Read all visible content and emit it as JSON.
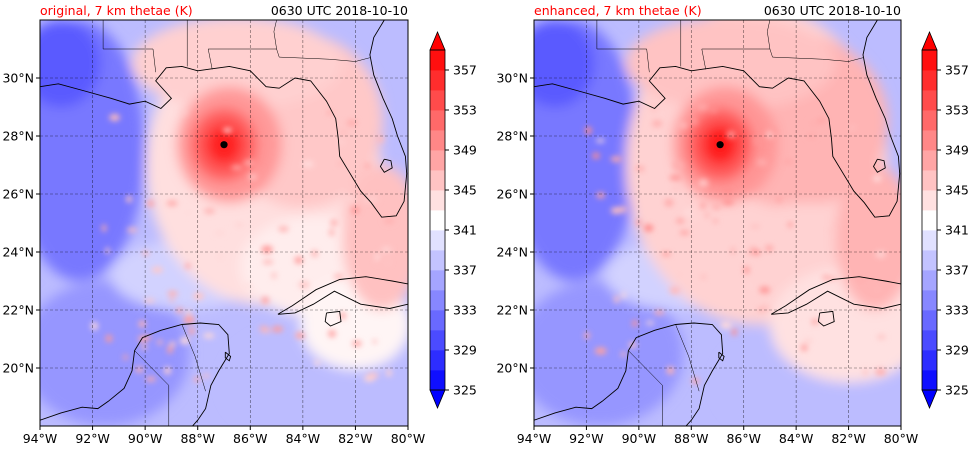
{
  "panels": [
    {
      "title": "original, 7 km thetae (K)",
      "time": "0630 UTC 2018-10-10",
      "storm_center": {
        "lon": -87.0,
        "lat": 27.7
      },
      "core_intensity": 0.95,
      "warm_spread": 0.55
    },
    {
      "title": "enhanced, 7 km thetae (K)",
      "time": "0630 UTC 2018-10-10",
      "storm_center": {
        "lon": -86.9,
        "lat": 27.7
      },
      "core_intensity": 1.0,
      "warm_spread": 1.0
    }
  ],
  "map": {
    "lon_range": [
      -94,
      -80
    ],
    "lat_range": [
      18,
      32
    ],
    "lon_ticks": [
      {
        "value": -94,
        "label": "94°W"
      },
      {
        "value": -92,
        "label": "92°W"
      },
      {
        "value": -90,
        "label": "90°W"
      },
      {
        "value": -88,
        "label": "88°W"
      },
      {
        "value": -86,
        "label": "86°W"
      },
      {
        "value": -84,
        "label": "84°W"
      },
      {
        "value": -82,
        "label": "82°W"
      },
      {
        "value": -80,
        "label": "80°W"
      }
    ],
    "lat_ticks": [
      {
        "value": 20,
        "label": "20°N"
      },
      {
        "value": 22,
        "label": "22°N"
      },
      {
        "value": 24,
        "label": "24°N"
      },
      {
        "value": 26,
        "label": "26°N"
      },
      {
        "value": 28,
        "label": "28°N"
      },
      {
        "value": 30,
        "label": "30°N"
      }
    ],
    "gridlines": true
  },
  "colorbar": {
    "min": 325,
    "max": 359,
    "step": 2,
    "tick_labels": [
      "325",
      "329",
      "333",
      "337",
      "341",
      "345",
      "349",
      "353",
      "357"
    ],
    "tick_values": [
      325,
      329,
      333,
      337,
      341,
      345,
      349,
      353,
      357
    ],
    "colors": {
      "low": "#0000ff",
      "mid": "#ffffff",
      "high": "#ff0000"
    },
    "extend": "both"
  },
  "colors": {
    "title_red": "#ff0000",
    "coastline": "#000000",
    "grid": "#000000"
  }
}
